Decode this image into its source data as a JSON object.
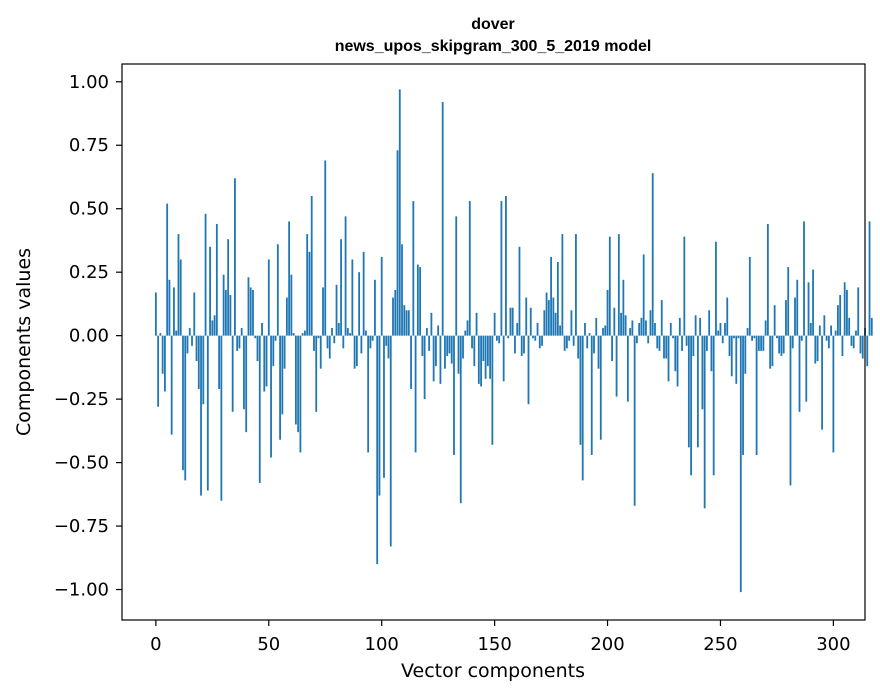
{
  "chart_data": {
    "type": "bar",
    "title": "dover",
    "subtitle": "news_upos_skipgram_300_5_2019 model",
    "xlabel": "Vector components",
    "ylabel": "Components values",
    "xlim": [
      -15,
      314
    ],
    "ylim": [
      -1.12,
      1.07
    ],
    "xticks": [
      0,
      50,
      100,
      150,
      200,
      250,
      300
    ],
    "xtick_labels": [
      "0",
      "50",
      "100",
      "150",
      "200",
      "250",
      "300"
    ],
    "yticks": [
      1.0,
      0.75,
      0.5,
      0.25,
      0.0,
      -0.25,
      -0.5,
      -0.75,
      -1.0
    ],
    "ytick_labels": [
      "1.00",
      "0.75",
      "0.50",
      "0.25",
      "0.00",
      "−0.25",
      "−0.50",
      "−0.75",
      "−1.00"
    ],
    "grid": false,
    "bar_color": "#1f77b4",
    "values": [
      0.17,
      -0.28,
      0.01,
      -0.15,
      -0.22,
      0.52,
      0.22,
      -0.39,
      0.19,
      0.02,
      0.4,
      0.3,
      -0.53,
      -0.57,
      -0.07,
      0.03,
      -0.04,
      0.17,
      -0.1,
      -0.21,
      -0.63,
      -0.27,
      0.48,
      -0.61,
      0.35,
      0.06,
      0.08,
      0.44,
      -0.21,
      -0.65,
      0.24,
      0.18,
      0.38,
      0.16,
      -0.3,
      0.62,
      -0.06,
      -0.05,
      0.03,
      -0.29,
      -0.38,
      0.23,
      0.19,
      0.18,
      -0.01,
      -0.1,
      -0.58,
      0.05,
      -0.22,
      -0.2,
      0.3,
      -0.48,
      -0.12,
      -0.02,
      0.36,
      -0.41,
      -0.31,
      -0.13,
      0.15,
      0.45,
      0.24,
      0.01,
      -0.35,
      -0.38,
      -0.46,
      0.01,
      0.02,
      0.4,
      0.33,
      0.55,
      -0.06,
      -0.3,
      -0.01,
      -0.13,
      0.19,
      0.69,
      -0.05,
      -0.09,
      0.03,
      -0.03,
      0.2,
      0.05,
      0.38,
      -0.05,
      0.47,
      0.03,
      0.01,
      0.3,
      -0.13,
      -0.12,
      0.25,
      -0.07,
      0.33,
      0.02,
      -0.46,
      -0.05,
      -0.02,
      0.22,
      -0.9,
      -0.63,
      0.31,
      -0.56,
      -0.04,
      -0.09,
      -0.83,
      0.15,
      0.18,
      0.73,
      0.97,
      0.36,
      0.12,
      0.1,
      0.1,
      -0.21,
      0.53,
      -0.46,
      0.28,
      0.27,
      -0.08,
      -0.25,
      0.03,
      -0.06,
      0.09,
      -0.18,
      -0.12,
      0.04,
      -0.19,
      0.92,
      -0.13,
      -0.08,
      -0.07,
      -0.11,
      -0.47,
      0.47,
      -0.15,
      -0.66,
      -0.09,
      0.02,
      0.06,
      0.53,
      -0.05,
      -0.12,
      0.09,
      -0.19,
      -0.2,
      -0.1,
      -0.17,
      -0.12,
      -0.17,
      -0.43,
      0.09,
      -0.02,
      -0.03,
      0.53,
      -0.18,
      0.55,
      -0.01,
      0.11,
      0.11,
      -0.07,
      0.05,
      0.35,
      -0.08,
      -0.07,
      0.15,
      -0.27,
      0.11,
      -0.01,
      -0.02,
      0.05,
      -0.05,
      -0.04,
      0.1,
      0.17,
      0.14,
      0.31,
      0.15,
      0.09,
      0.29,
      0.04,
      0.4,
      -0.06,
      -0.05,
      -0.02,
      0.1,
      -0.04,
      0.4,
      -0.09,
      -0.43,
      -0.57,
      0.05,
      -0.05,
      0.01,
      -0.47,
      -0.07,
      0.07,
      -0.13,
      -0.41,
      0.03,
      0.04,
      0.18,
      0.39,
      -0.1,
      0.11,
      -0.24,
      0.4,
      0.09,
      0.22,
      0.08,
      -0.26,
      0.03,
      0.06,
      -0.67,
      -0.03,
      0.05,
      0.07,
      0.32,
      0.06,
      -0.03,
      0.1,
      0.64,
      0.05,
      -0.05,
      -0.06,
      0.14,
      -0.09,
      -0.09,
      -0.18,
      0.05,
      -0.01,
      -0.14,
      -0.2,
      0.07,
      -0.06,
      0.39,
      -0.04,
      -0.44,
      -0.55,
      -0.08,
      0.08,
      -0.44,
      0.07,
      -0.29,
      -0.68,
      -0.06,
      0.1,
      -0.14,
      -0.55,
      0.37,
      0.02,
      0.05,
      -0.03,
      0.05,
      0.15,
      -0.08,
      -0.16,
      -0.01,
      -0.19,
      -0.01,
      -1.01,
      -0.47,
      -0.15,
      0.03,
      0.31,
      -0.02,
      -0.01,
      -0.47,
      -0.06,
      -0.06,
      -0.06,
      0.06,
      0.44,
      -0.13,
      -0.12,
      0.12,
      -0.01,
      -0.07,
      -0.08,
      -0.07,
      0.14,
      0.27,
      -0.59,
      -0.05,
      0.15,
      0.22,
      -0.3,
      -0.02,
      0.45,
      -0.26,
      0.21,
      0.05,
      0.26,
      -0.11,
      -0.1,
      0.04,
      -0.37,
      0.08,
      -0.02,
      -0.05,
      0.04,
      -0.46,
      0.02,
      0.12,
      0.16,
      -0.08,
      0.21,
      0.18,
      0.07,
      -0.04,
      -0.05,
      0.02,
      0.19,
      -0.07,
      -0.09,
      0.03,
      -0.12,
      0.45,
      0.07
    ]
  }
}
